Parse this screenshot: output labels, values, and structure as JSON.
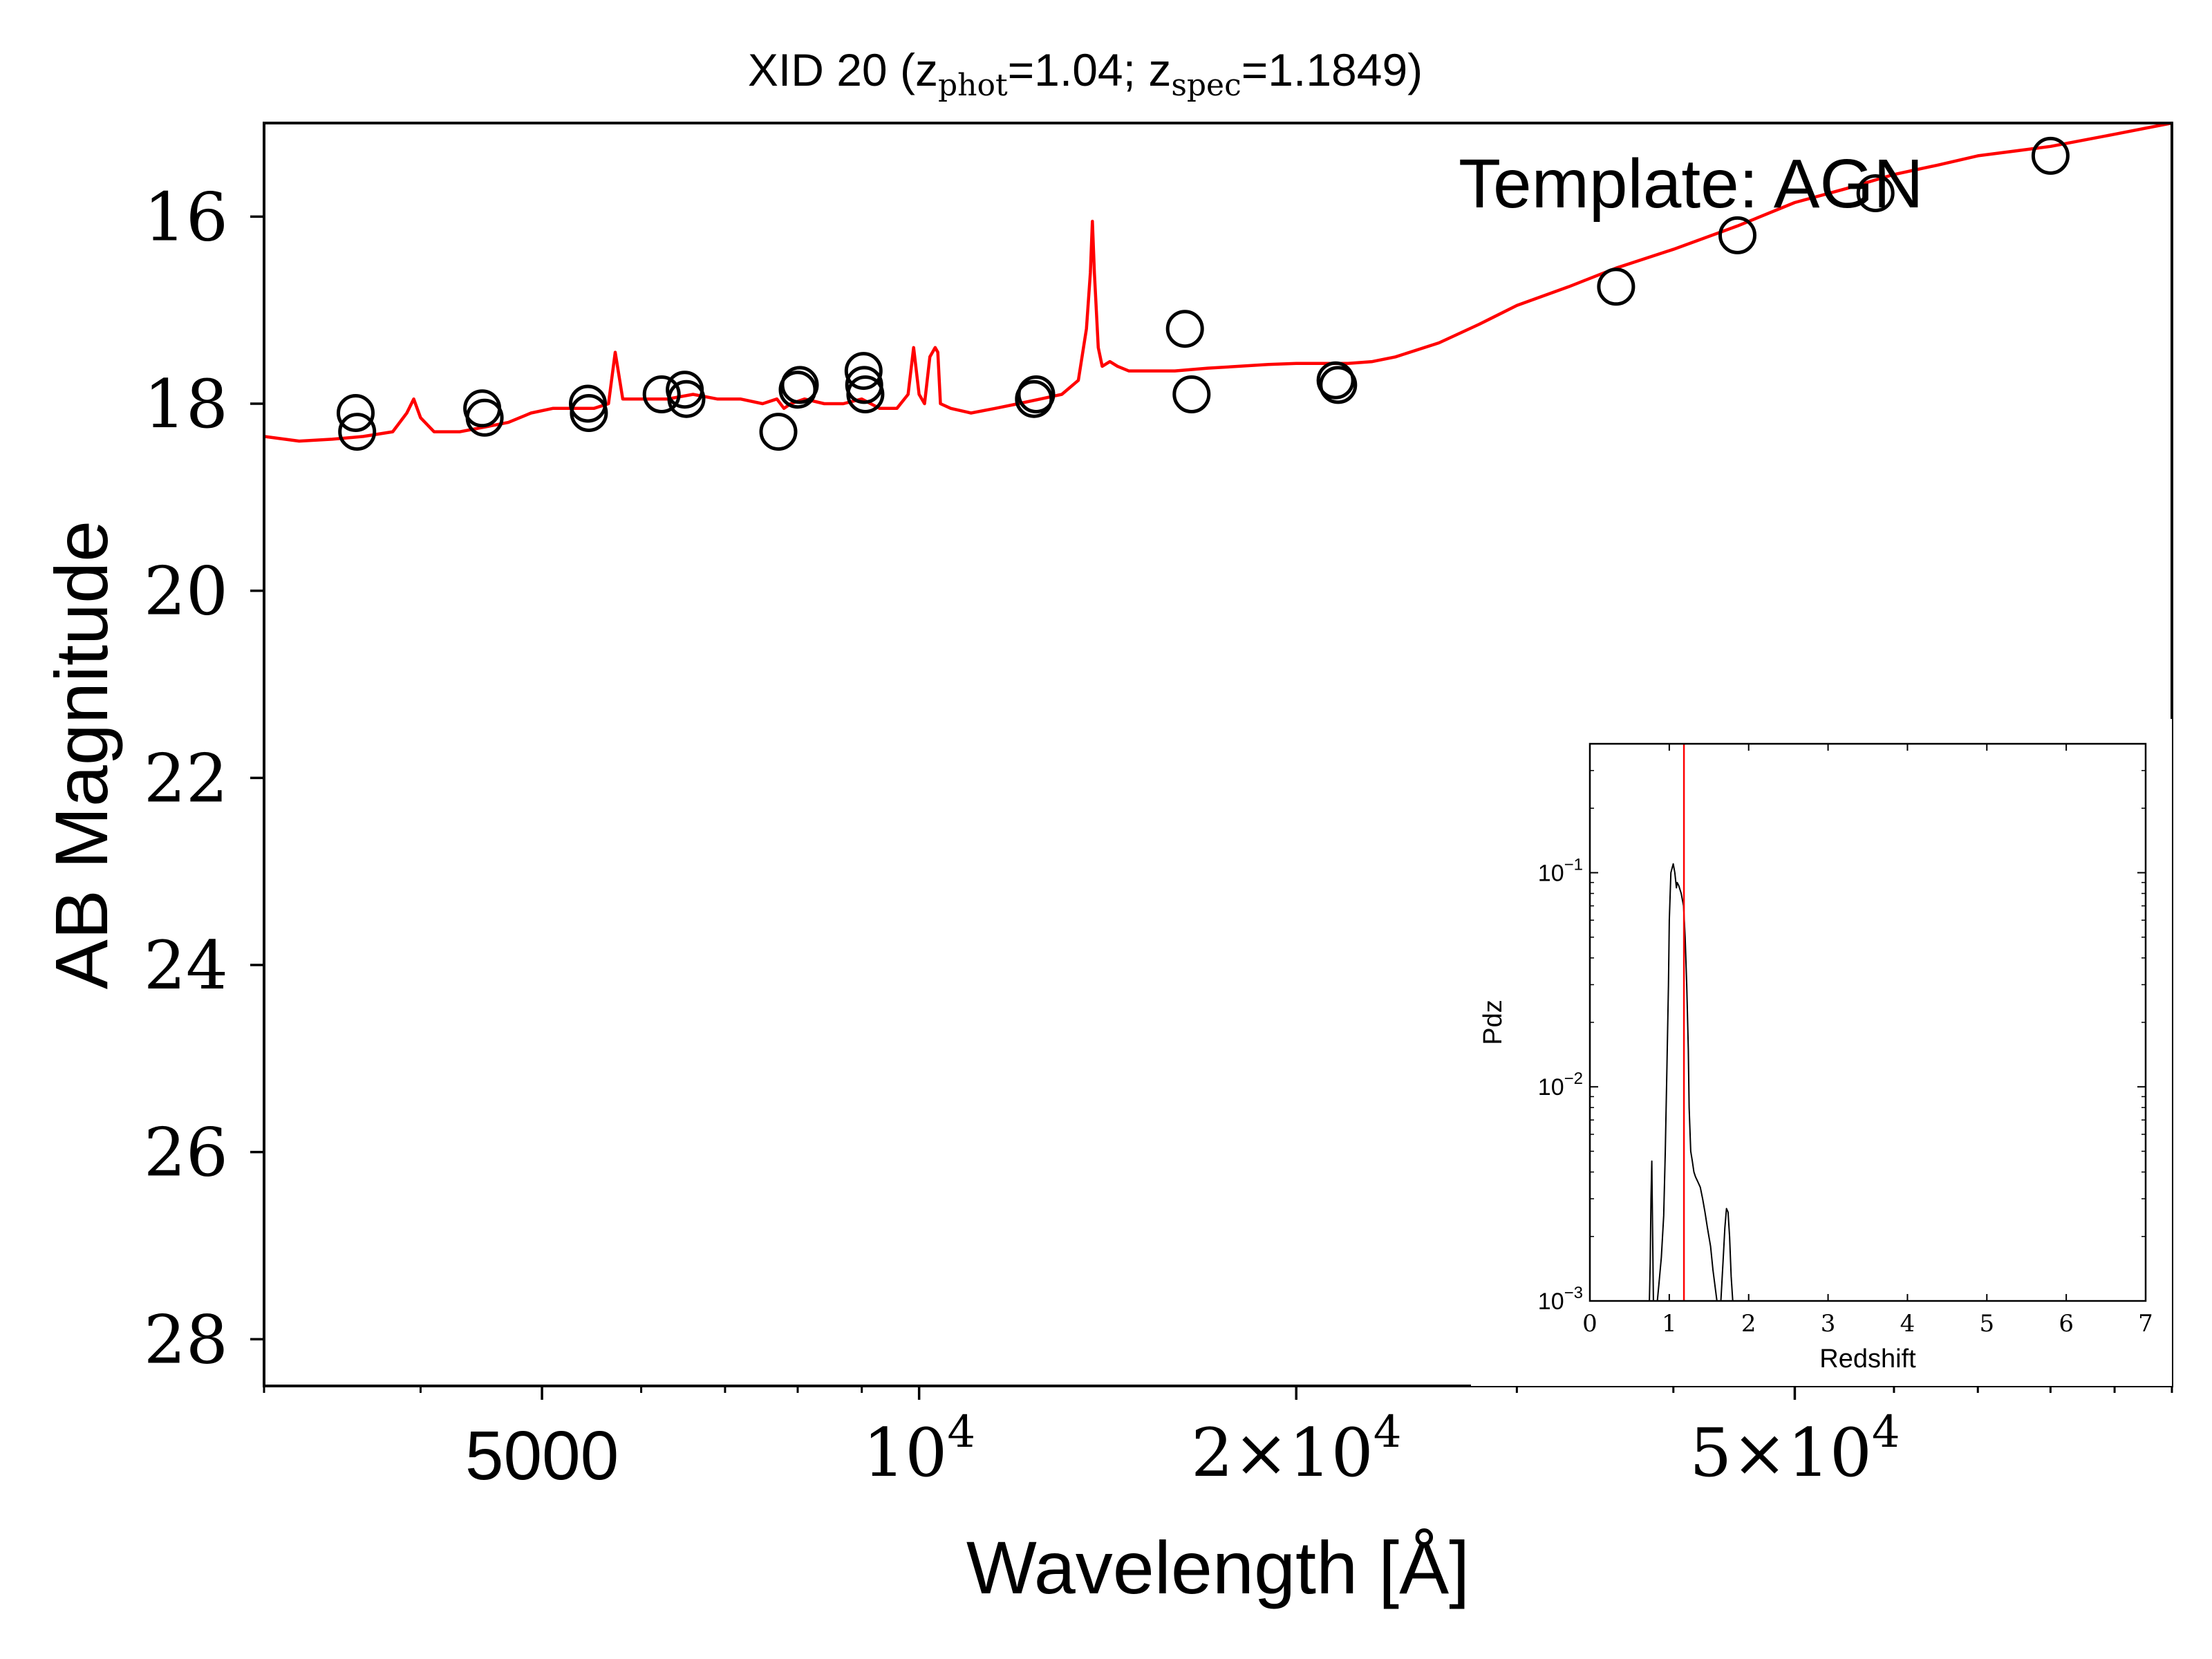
{
  "chart_data": [
    {
      "type": "scatter",
      "title_prefix": "XID 20 (z",
      "title_sub_phot": "phot",
      "title_mid": "=1.04; z",
      "title_sub_spec": "spec",
      "title_suffix": "=1.1849)",
      "xlabel": "Wavelength [Å]",
      "ylabel": "AB Magnitude",
      "annotation": "Template: AGN",
      "x_scale": "log",
      "xlim": [
        3000,
        100000
      ],
      "ylim": [
        28.5,
        15
      ],
      "y_inverted": true,
      "x_ticks": [
        {
          "value": 5000,
          "label": "5000",
          "style": "sans"
        },
        {
          "value": 10000,
          "label_base": "10",
          "label_exp": "4",
          "style": "serif"
        },
        {
          "value": 20000,
          "label_base": "2×10",
          "label_exp": "4",
          "style": "serif"
        },
        {
          "value": 50000,
          "label_base": "5×10",
          "label_exp": "4",
          "style": "serif"
        }
      ],
      "y_ticks": [
        16,
        18,
        20,
        22,
        24,
        26,
        28
      ],
      "grid": false,
      "colors": {
        "model": "#ff0000",
        "points": "#000000"
      },
      "series": [
        {
          "kind": "photometry",
          "marker": "open-circle",
          "x": [
            3550,
            3560,
            4480,
            4500,
            5440,
            5450,
            6230,
            6500,
            6520,
            7720,
            8000,
            8030,
            9030,
            9040,
            9060,
            12350,
            12400,
            16300,
            16500,
            21500,
            21600,
            36000,
            45000,
            58000,
            80000
          ],
          "y": [
            18.1,
            18.3,
            18.05,
            18.15,
            18.0,
            18.1,
            17.9,
            17.85,
            17.95,
            18.3,
            17.85,
            17.8,
            17.65,
            17.8,
            17.9,
            17.95,
            17.9,
            17.2,
            17.9,
            17.75,
            17.8,
            16.75,
            16.2,
            15.75,
            15.35
          ]
        },
        {
          "kind": "template",
          "line": "solid",
          "x": [
            3000,
            3200,
            3400,
            3600,
            3800,
            3900,
            3950,
            4000,
            4100,
            4300,
            4500,
            4700,
            4900,
            5100,
            5300,
            5500,
            5650,
            5720,
            5800,
            6000,
            6300,
            6600,
            6900,
            7200,
            7500,
            7700,
            7800,
            7900,
            8100,
            8400,
            8700,
            9000,
            9300,
            9600,
            9800,
            9900,
            10000,
            10100,
            10200,
            10300,
            10350,
            10400,
            10600,
            11000,
            11500,
            12000,
            12500,
            13000,
            13400,
            13600,
            13700,
            13750,
            13800,
            13900,
            14000,
            14200,
            14400,
            14700,
            15000,
            16000,
            17000,
            18000,
            19000,
            20000,
            21000,
            22000,
            23000,
            24000,
            26000,
            28000,
            30000,
            33000,
            36000,
            40000,
            45000,
            50000,
            55000,
            60000,
            65000,
            70000,
            80000,
            90000,
            100000
          ],
          "y": [
            18.35,
            18.4,
            18.38,
            18.35,
            18.3,
            18.1,
            17.95,
            18.15,
            18.3,
            18.3,
            18.25,
            18.2,
            18.1,
            18.05,
            18.05,
            18.05,
            18.0,
            17.45,
            17.95,
            17.95,
            17.95,
            17.9,
            17.95,
            17.95,
            18.0,
            17.95,
            18.05,
            18.0,
            17.95,
            18.0,
            18.0,
            17.95,
            18.05,
            18.05,
            17.9,
            17.4,
            17.9,
            18.0,
            17.5,
            17.4,
            17.45,
            18.0,
            18.05,
            18.1,
            18.05,
            18.0,
            17.95,
            17.9,
            17.75,
            17.2,
            16.6,
            16.05,
            16.6,
            17.4,
            17.6,
            17.55,
            17.6,
            17.65,
            17.65,
            17.65,
            17.62,
            17.6,
            17.58,
            17.57,
            17.57,
            17.57,
            17.55,
            17.5,
            17.35,
            17.15,
            16.95,
            16.75,
            16.55,
            16.35,
            16.1,
            15.85,
            15.7,
            15.55,
            15.45,
            15.35,
            15.25,
            15.12,
            15.0
          ]
        }
      ]
    },
    {
      "type": "line",
      "xlabel": "Redshift",
      "ylabel": "Pdz",
      "x_scale": "linear",
      "y_scale": "log",
      "xlim": [
        0,
        7
      ],
      "ylim": [
        0.001,
        0.4
      ],
      "x_ticks": [
        "0",
        "1",
        "2",
        "3",
        "4",
        "5",
        "6",
        "7"
      ],
      "y_ticks": [
        {
          "value": 0.1,
          "label_base": "10",
          "label_exp": "−1"
        },
        {
          "value": 0.01,
          "label_base": "10",
          "label_exp": "−2"
        },
        {
          "value": 0.001,
          "label_base": "10",
          "label_exp": "−3"
        }
      ],
      "colors": {
        "pdz": "#000000",
        "zspec": "#ff0000"
      },
      "zspec_line": 1.1849,
      "series": [
        {
          "x": [
            0.75,
            0.76,
            0.77,
            0.78,
            0.785,
            0.8,
            0.83,
            0.85,
            0.87,
            0.9,
            0.93,
            0.95,
            0.97,
            0.99,
            1.0,
            1.02,
            1.05,
            1.07,
            1.09,
            1.1,
            1.12,
            1.15,
            1.18,
            1.2,
            1.22,
            1.24,
            1.25,
            1.27,
            1.29,
            1.31,
            1.33,
            1.36,
            1.39,
            1.42,
            1.45,
            1.48,
            1.52,
            1.55,
            1.6,
            1.63,
            1.65,
            1.68,
            1.7,
            1.72,
            1.74,
            1.76,
            1.78,
            1.8,
            1.82
          ],
          "y": [
            0.001,
            0.0015,
            0.003,
            0.0045,
            0.003,
            0.001,
            0.001,
            0.001,
            0.0012,
            0.0016,
            0.0025,
            0.005,
            0.012,
            0.03,
            0.06,
            0.1,
            0.11,
            0.1,
            0.085,
            0.09,
            0.087,
            0.08,
            0.07,
            0.05,
            0.03,
            0.015,
            0.008,
            0.005,
            0.0045,
            0.004,
            0.0038,
            0.0036,
            0.0034,
            0.003,
            0.0026,
            0.0022,
            0.0018,
            0.0014,
            0.001,
            0.001,
            0.001,
            0.0016,
            0.0022,
            0.0027,
            0.0026,
            0.002,
            0.0013,
            0.001,
            0.001
          ]
        }
      ]
    }
  ]
}
